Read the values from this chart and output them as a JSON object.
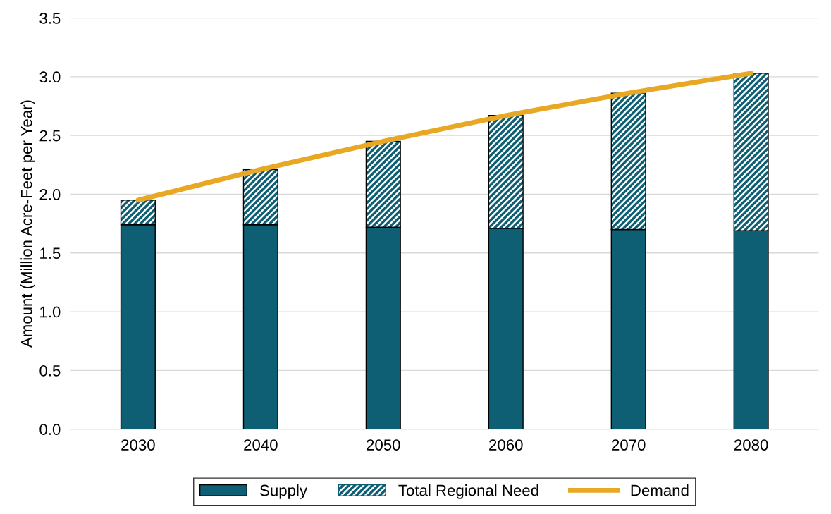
{
  "chart_data": {
    "type": "bar",
    "stacked": true,
    "ylabel": "Amount (Million Acre-Feet per Year)",
    "categories": [
      "2030",
      "2040",
      "2050",
      "2060",
      "2070",
      "2080"
    ],
    "series": [
      {
        "name": "Supply",
        "color": "#0e5f73",
        "values": [
          1.74,
          1.74,
          1.72,
          1.71,
          1.7,
          1.69
        ]
      },
      {
        "name": "Total Regional Need",
        "color": "#0e5f73",
        "values": [
          0.21,
          0.47,
          0.73,
          0.96,
          1.16,
          1.34
        ]
      },
      {
        "name": "Demand",
        "type": "line",
        "color": "#e9a823",
        "values": [
          1.95,
          2.21,
          2.45,
          2.67,
          2.86,
          3.03
        ]
      }
    ],
    "ylim": [
      0,
      3.5
    ],
    "yticks": [
      {
        "value": 0,
        "label": "0.0"
      },
      {
        "value": 0.5,
        "label": "0.5"
      },
      {
        "value": 1,
        "label": "1.0"
      },
      {
        "value": 1.5,
        "label": "1.5"
      },
      {
        "value": 2,
        "label": "2.0"
      },
      {
        "value": 2.5,
        "label": "2.5"
      },
      {
        "value": 3,
        "label": "3.0"
      },
      {
        "value": 3.5,
        "label": "3.5"
      }
    ],
    "grid": "y",
    "legend": "bottom",
    "marker": "none",
    "line_style": "solid"
  }
}
